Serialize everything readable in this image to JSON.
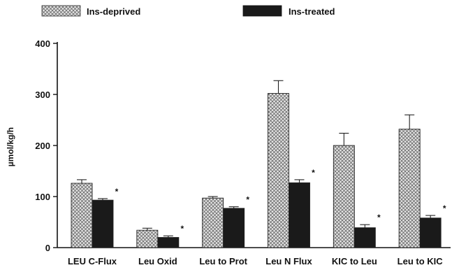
{
  "chart_data": {
    "type": "bar",
    "ylabel": "µmol/kg/h",
    "ylim": [
      0,
      400
    ],
    "yticks": [
      0,
      100,
      200,
      300,
      400
    ],
    "categories": [
      "LEU C-Flux",
      "Leu Oxid",
      "Leu to Prot",
      "Leu N Flux",
      "KIC to Leu",
      "Leu to KIC"
    ],
    "series": [
      {
        "name": "Ins-deprived",
        "values": [
          126,
          34,
          97,
          302,
          200,
          232
        ],
        "errors": [
          7,
          4,
          3,
          25,
          24,
          28
        ],
        "pattern": "crosshatch",
        "color": "#b0b0b0"
      },
      {
        "name": "Ins-treated",
        "values": [
          93,
          20,
          77,
          127,
          39,
          58
        ],
        "errors": [
          3,
          3,
          3,
          6,
          6,
          5
        ],
        "pattern": "solid",
        "color": "#1a1a1a"
      }
    ],
    "significance_marker": "*",
    "significance_on_series": "Ins-treated",
    "legend_position": "top",
    "grid": false
  }
}
